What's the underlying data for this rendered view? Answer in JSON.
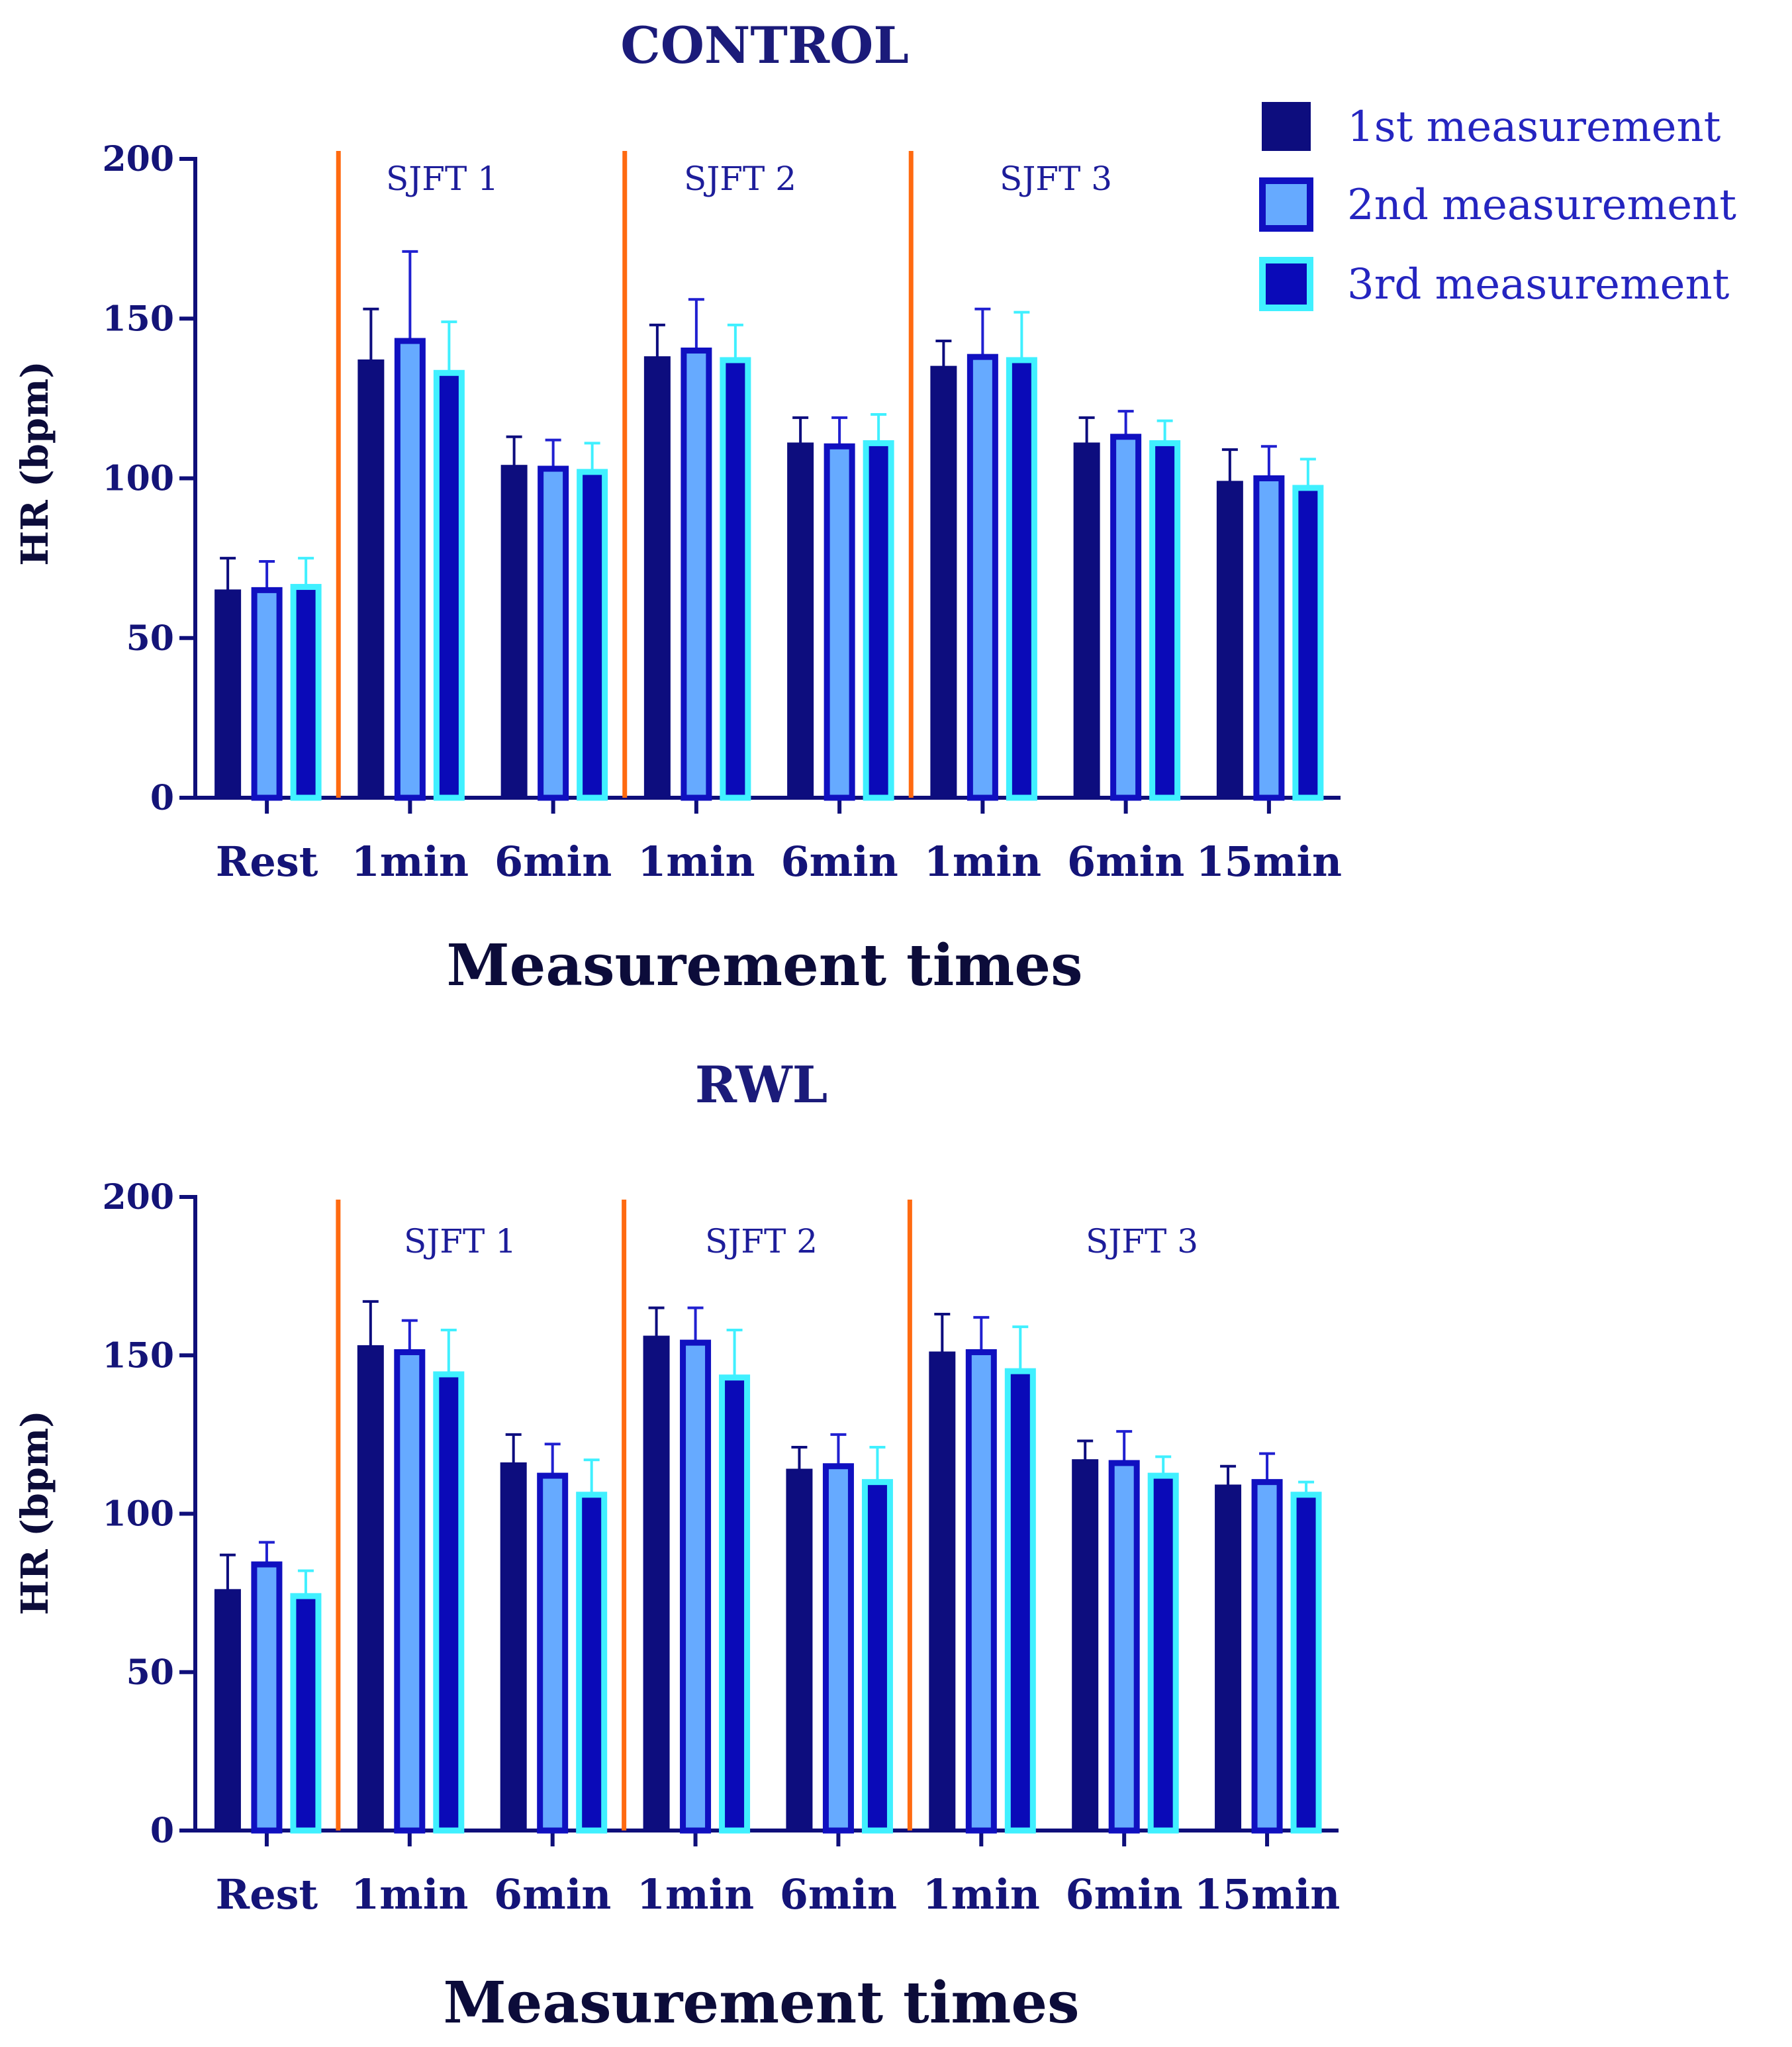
{
  "legend": [
    {
      "label": "1st measurement",
      "fill": "#0d0d7e",
      "stroke": "#0d0d7e"
    },
    {
      "label": "2nd measurement",
      "fill": "#66aaff",
      "stroke": "#1010c0"
    },
    {
      "label": "3rd measurement",
      "fill": "#0a0ab8",
      "stroke": "#40f0ff"
    }
  ],
  "colors": {
    "axis": "#0f0f7a",
    "divider": "#ff6a10",
    "error_bar_1": "#0d0d7e",
    "error_bar_2": "#2020d0",
    "error_bar_3": "#40f0ff"
  },
  "chart_data": [
    {
      "type": "bar",
      "title": "CONTROL",
      "xlabel": "Measurement times",
      "ylabel": "HR (bpm)",
      "ylim": [
        0,
        200
      ],
      "yticks": [
        0,
        50,
        100,
        150,
        200
      ],
      "categories": [
        "Rest",
        "1min",
        "6min",
        "1min",
        "6min",
        "1min",
        "6min",
        "15min"
      ],
      "phases": [
        {
          "label": "SJFT 1",
          "start_index": 1,
          "end_index": 2
        },
        {
          "label": "SJFT 2",
          "start_index": 3,
          "end_index": 4
        },
        {
          "label": "SJFT 3",
          "start_index": 5,
          "end_index": 7
        }
      ],
      "series": [
        {
          "name": "1st measurement",
          "values": [
            65,
            137,
            104,
            138,
            111,
            135,
            111,
            99
          ],
          "errors": [
            10,
            16,
            9,
            10,
            8,
            8,
            8,
            10
          ]
        },
        {
          "name": "2nd measurement",
          "values": [
            65,
            143,
            103,
            140,
            110,
            138,
            113,
            100
          ],
          "errors": [
            9,
            28,
            9,
            16,
            9,
            15,
            8,
            10
          ]
        },
        {
          "name": "3rd measurement",
          "values": [
            66,
            133,
            102,
            137,
            111,
            137,
            111,
            97
          ],
          "errors": [
            9,
            16,
            9,
            11,
            9,
            15,
            7,
            9
          ]
        }
      ]
    },
    {
      "type": "bar",
      "title": "RWL",
      "xlabel": "Measurement times",
      "ylabel": "HR (bpm)",
      "ylim": [
        0,
        200
      ],
      "yticks": [
        0,
        50,
        100,
        150,
        200
      ],
      "categories": [
        "Rest",
        "1min",
        "6min",
        "1min",
        "6min",
        "1min",
        "6min",
        "15min"
      ],
      "phases": [
        {
          "label": "SJFT 1",
          "start_index": 1,
          "end_index": 2
        },
        {
          "label": "SJFT 2",
          "start_index": 3,
          "end_index": 4
        },
        {
          "label": "SJFT 3",
          "start_index": 5,
          "end_index": 7
        }
      ],
      "series": [
        {
          "name": "1st measurement",
          "values": [
            76,
            153,
            116,
            156,
            114,
            151,
            117,
            109
          ],
          "errors": [
            11,
            14,
            9,
            9,
            7,
            12,
            6,
            6
          ]
        },
        {
          "name": "2nd measurement",
          "values": [
            84,
            151,
            112,
            154,
            115,
            151,
            116,
            110
          ],
          "errors": [
            7,
            10,
            10,
            11,
            10,
            11,
            10,
            9
          ]
        },
        {
          "name": "3rd measurement",
          "values": [
            74,
            144,
            106,
            143,
            110,
            145,
            112,
            106
          ],
          "errors": [
            8,
            14,
            11,
            15,
            11,
            14,
            6,
            4
          ]
        }
      ]
    }
  ]
}
